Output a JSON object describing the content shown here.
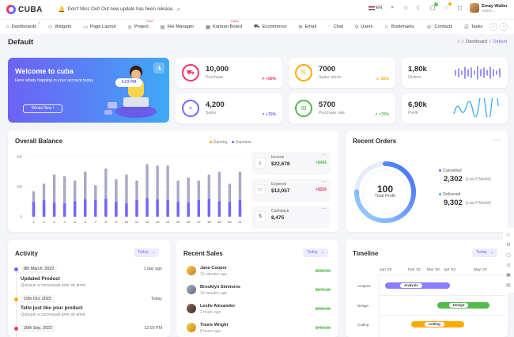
{
  "brand": {
    "name": "CUBA"
  },
  "notice": {
    "text": "Don't Miss Out! Out new update has been release.",
    "icon": "bell-icon"
  },
  "topbar": {
    "lang": "EN",
    "badge_bag": "4",
    "user_name": "Emay Walter",
    "user_role": "Admin"
  },
  "nav": {
    "items": [
      {
        "label": "Dashboards",
        "icon": "home-icon",
        "badge": "2"
      },
      {
        "label": "Widgets",
        "icon": "widget-icon"
      },
      {
        "label": "Page Layout",
        "icon": "layout-icon"
      },
      {
        "label": "Project",
        "icon": "project-icon",
        "badge": "New"
      },
      {
        "label": "File Manager",
        "icon": "folder-icon"
      },
      {
        "label": "Kanban Board",
        "icon": "kanban-icon",
        "badge": "Latest"
      },
      {
        "label": "Ecommerce",
        "icon": "cart-icon"
      },
      {
        "label": "Email",
        "icon": "mail-icon"
      },
      {
        "label": "Chat",
        "icon": "chat-icon"
      },
      {
        "label": "Users",
        "icon": "user-icon"
      },
      {
        "label": "Bookmarks",
        "icon": "bookmark-icon"
      },
      {
        "label": "Contacts",
        "icon": "contacts-icon"
      },
      {
        "label": "Tasks",
        "icon": "tasks-icon"
      }
    ]
  },
  "page": {
    "title": "Default",
    "breadcrumb": [
      "Dashboard",
      "Default"
    ]
  },
  "welcome": {
    "title": "Welcome to cuba",
    "subtitle": "Here whats happing in your account today",
    "button": "Whats New !",
    "time": "4:23 PM"
  },
  "stats": [
    {
      "value": "10,000",
      "label": "Purchase",
      "change": "+50%",
      "color": "#f73164",
      "trend": "up"
    },
    {
      "value": "7000",
      "label": "Sales return",
      "change": "-20%",
      "color": "#ffaa05",
      "trend": "down"
    },
    {
      "value": "1,80k",
      "label": "Orders"
    },
    {
      "value": "4,200",
      "label": "Sales",
      "change": "+70%",
      "color": "#7366ff",
      "trend": "up"
    },
    {
      "value": "5700",
      "label": "Purchase rate",
      "change": "+70%",
      "color": "#54ba4a",
      "trend": "up"
    },
    {
      "value": "6,90k",
      "label": "Profit"
    }
  ],
  "balance": {
    "title": "Overall Balance",
    "legend": [
      "Earning",
      "Expense"
    ],
    "minis": [
      {
        "title": "Income",
        "value": "$22,678",
        "change": "+$456",
        "change_color": "#54ba4a",
        "icon": "download-icon"
      },
      {
        "title": "Expense",
        "value": "$12,057",
        "change": "+$256",
        "change_color": "#f73164",
        "icon": "card-icon"
      },
      {
        "title": "Cashback",
        "value": "8,475",
        "icon": "dollar-icon"
      }
    ]
  },
  "chart_data": {
    "type": "bar",
    "categories": [
      "1",
      "2",
      "3",
      "4",
      "5",
      "6",
      "7",
      "8",
      "9",
      "10",
      "11",
      "12",
      "13",
      "14",
      "15",
      "16",
      "17",
      "18",
      "19",
      "20",
      "21"
    ],
    "yticks": [
      "0",
      "100",
      "200"
    ],
    "ylim": [
      0,
      210
    ],
    "series": [
      {
        "name": "Earning",
        "color": "#7366ff",
        "values": [
          50,
          55,
          48,
          45,
          52,
          58,
          55,
          60,
          50,
          45,
          55,
          62,
          58,
          55,
          50,
          48,
          55,
          60,
          52,
          50,
          55
        ]
      },
      {
        "name": "Expense",
        "color": "#a8a8c8",
        "values": [
          85,
          110,
          140,
          135,
          120,
          150,
          105,
          160,
          125,
          140,
          120,
          175,
          170,
          170,
          120,
          130,
          120,
          140,
          150,
          110,
          150
        ]
      }
    ]
  },
  "orders": {
    "title": "Recent Orders",
    "center_value": "100",
    "center_label": "Total Profit",
    "cancelled": {
      "label": "Cancelled",
      "value": "2,302",
      "sub": "[Last 6 Month]"
    },
    "delivered": {
      "label": "Delivered",
      "value": "9,302",
      "sub": "[Last 6 Month]"
    }
  },
  "activity": {
    "title": "Activity",
    "filter": "Today",
    "items": [
      {
        "date": "8th March, 2022",
        "ago": "1 day ago",
        "title": "Updated Product",
        "desc": "Quisque a consequat ante sit amet.",
        "color": "#7366ff"
      },
      {
        "date": "15th Oct, 2022",
        "ago": "Today",
        "title": "Tello just like your product",
        "desc": "Quisque a consequat ante sit amet.",
        "color": "#ffaa05"
      },
      {
        "date": "20th Sep, 2022",
        "ago": "12:00 PM",
        "title": "",
        "desc": "",
        "color": "#f73164"
      }
    ]
  },
  "sales": {
    "title": "Recent Sales",
    "filter": "Today",
    "items": [
      {
        "name": "Jane Cooper",
        "time": "10 minutes ago",
        "amount": "$200.00"
      },
      {
        "name": "Brooklyn Simmons",
        "time": "19 minutes ago",
        "amount": "$970.00"
      },
      {
        "name": "Leslie Alexander",
        "time": "2 hours ago",
        "amount": "$300.00"
      },
      {
        "name": "Travis Wright",
        "time": "8 hours ago",
        "amount": "$450.00"
      }
    ]
  },
  "timeline": {
    "title": "Timeline",
    "filter": "Today",
    "months": [
      "Jan '22",
      "Feb '22",
      "Mar '22",
      "Apr '22",
      "May '22"
    ],
    "rows": [
      {
        "label": "Analysis",
        "tag": "Analysis",
        "color": "#8a7dff"
      },
      {
        "label": "Design",
        "tag": "Design",
        "color": "#54ba4a"
      },
      {
        "label": "Coding",
        "tag": "Coding",
        "color": "#ffaa05"
      }
    ]
  }
}
